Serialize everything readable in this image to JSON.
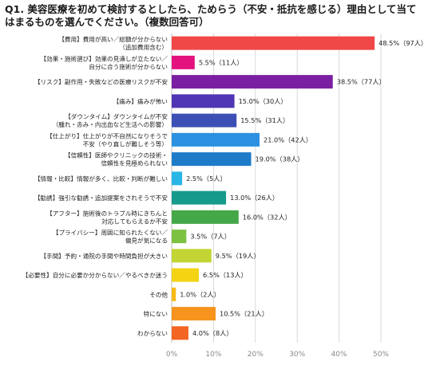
{
  "chart_data": {
    "type": "bar",
    "orientation": "horizontal",
    "title": "Q1. 美容医療を初めて検討するとしたら、ためらう（不安・抵抗を感じる）理由として当てはまるものを選んでください。（複数回答可）",
    "xlim": [
      0,
      50
    ],
    "ticks": [
      "0%",
      "10%",
      "20%",
      "30%",
      "40%",
      "50%"
    ],
    "grid": true,
    "categories": [
      [
        "【費用】費用が高い／総額が分からない",
        "（追加費用含む）"
      ],
      [
        "【効果・施術選び】効果の見通しが立たない／",
        "自分に合う施術が分からない"
      ],
      [
        "【リスク】副作用・失敗などの医療リスクが不安"
      ],
      [
        "【痛み】痛みが怖い"
      ],
      [
        "【ダウンタイム】ダウンタイムが不安",
        "（腫れ・赤み・内出血など生活への影響）"
      ],
      [
        "【仕上がり】仕上がりが不自然になりそうで",
        "不安（やり直しが難しそう等）"
      ],
      [
        "【信頼性】医師やクリニックの技術・",
        "信頼性を見極められない"
      ],
      [
        "【情報・比較】情報が多く、比較・判断が難しい"
      ],
      [
        "【勧誘】強引な勧誘・追加提案をされそうで不安"
      ],
      [
        "【アフター】施術後のトラブル時にきちんと",
        "対応してもらえるか不安"
      ],
      [
        "【プライバシー】周囲に知られたくない／",
        "偏見が気になる"
      ],
      [
        "【手間】予約・通院の手間や時間負担が大きい"
      ],
      [
        "【必要性】自分に必要か分からない／やるべきか迷う"
      ],
      [
        "その他"
      ],
      [
        "特にない"
      ],
      [
        "わからない"
      ]
    ],
    "values": [
      48.5,
      5.5,
      38.5,
      15.0,
      15.5,
      21.0,
      19.0,
      2.5,
      13.0,
      16.0,
      3.5,
      9.5,
      6.5,
      1.0,
      10.5,
      4.0
    ],
    "data_labels": [
      "48.5%（97人）",
      "5.5%（11人）",
      "38.5%（77人）",
      "15.0%（30人）",
      "15.5%（31人）",
      "21.0%（42人）",
      "19.0%（38人）",
      "2.5%（5人）",
      "13.0%（26人）",
      "16.0%（32人）",
      "3.5%（7人）",
      "9.5%（19人）",
      "6.5%（13人）",
      "1.0%（2人）",
      "10.5%（21人）",
      "4.0%（8人）"
    ],
    "colors": [
      "#f04747",
      "#e3127e",
      "#7b1fa2",
      "#5035b4",
      "#3c4fb5",
      "#2b90e0",
      "#1e7bc8",
      "#29b6e6",
      "#169a8c",
      "#45a848",
      "#7cc142",
      "#c3d535",
      "#f4d313",
      "#f7b916",
      "#f7941d",
      "#f26522"
    ]
  }
}
